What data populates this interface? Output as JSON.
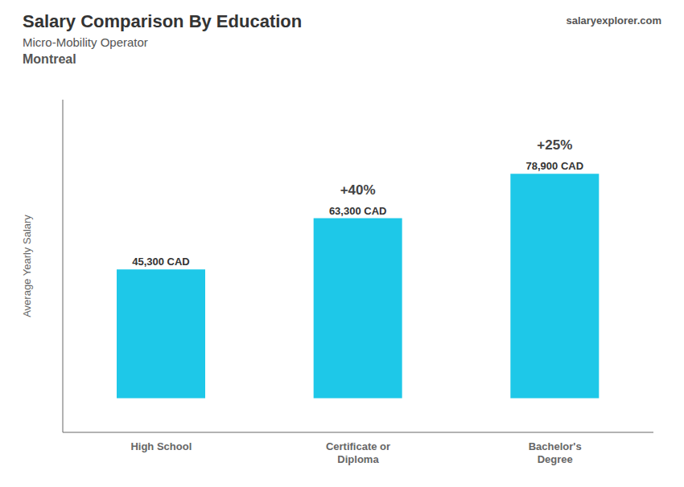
{
  "chart_data": {
    "type": "bar",
    "title": "Salary Comparison By Education",
    "subtitle": [
      "Micro-Mobility Operator",
      "Montreal"
    ],
    "watermark": "salaryexplorer.com",
    "y_label": "Average Yearly Salary",
    "categories": [
      "High School",
      "Certificate or\nDiploma",
      "Bachelor's\nDegree"
    ],
    "values": [
      45300,
      63300,
      78900
    ],
    "value_labels": [
      "45,300 CAD",
      "63,300 CAD",
      "78,900 CAD"
    ],
    "annotations": [
      "+40%",
      "+25%"
    ],
    "data_labels": true,
    "color": "#1ec8e8",
    "ylim": [
      -12000,
      105000
    ],
    "tick_labels": "x",
    "grid": false
  }
}
